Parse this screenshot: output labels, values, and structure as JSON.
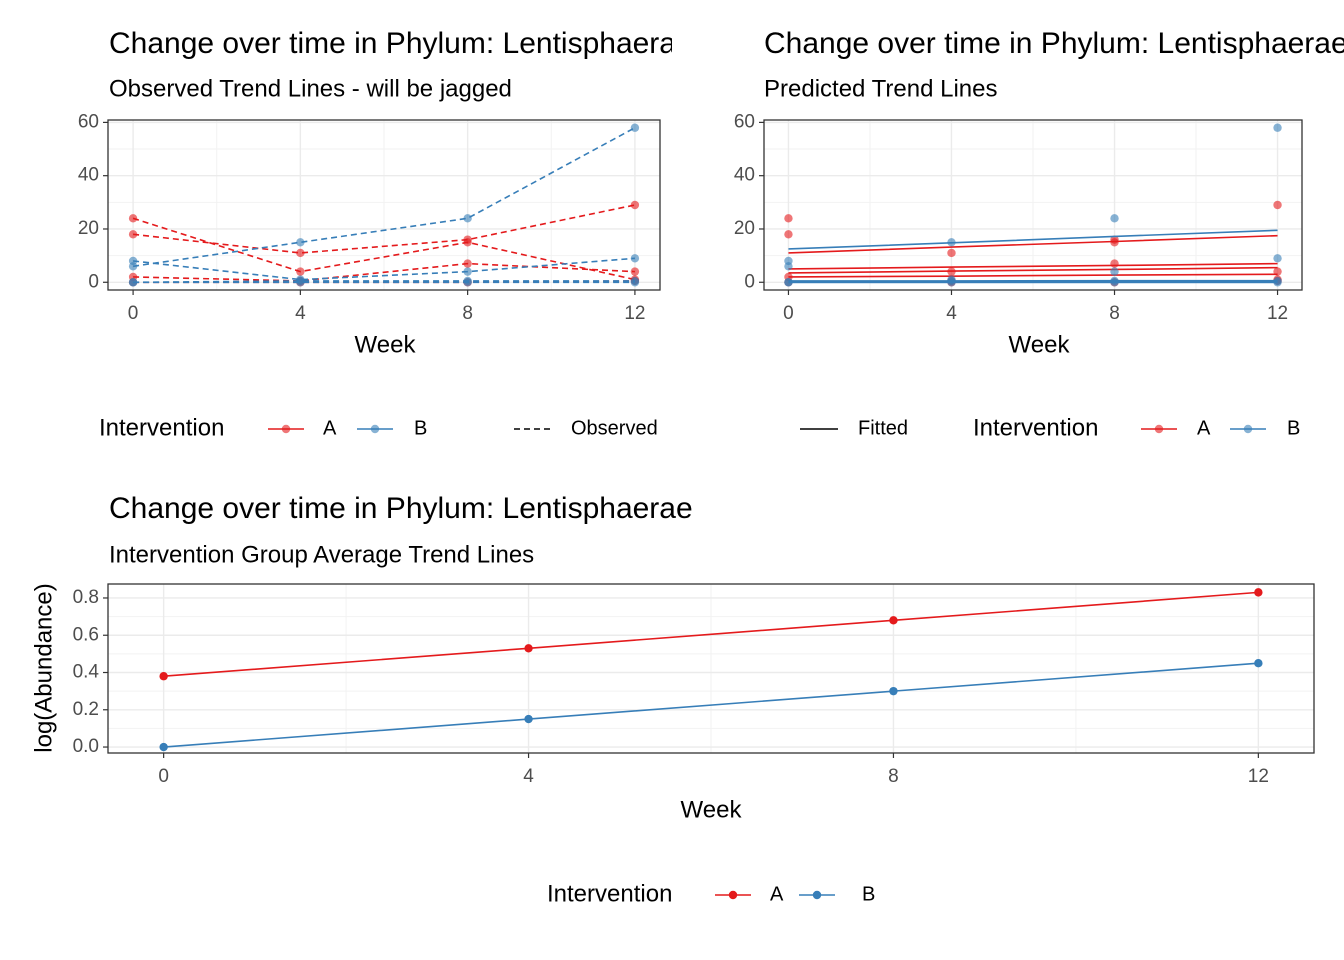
{
  "chart_data": [
    {
      "type": "line",
      "title": "Change over time in Phylum: Lentisphaerae",
      "subtitle": "Observed Trend Lines - will be jagged",
      "xlabel": "Week",
      "x": [
        0,
        4,
        8,
        12
      ],
      "xlim": [
        -0.6,
        12.6
      ],
      "xticks": [
        0,
        4,
        8,
        12
      ],
      "ylim": [
        -2.9,
        60.9
      ],
      "yticks": [
        0,
        20,
        40,
        60
      ],
      "grid": true,
      "linestyle": "dashed",
      "point_alpha": 0.6,
      "legend": {
        "title": "Intervention",
        "entries": [
          {
            "name": "A",
            "color": "#E41A1C"
          },
          {
            "name": "B",
            "color": "#377EB8"
          }
        ]
      },
      "linetype_legend": "Observed",
      "series": [
        {
          "group": 0,
          "values": [
            24,
            4,
            15,
            1
          ]
        },
        {
          "group": 0,
          "values": [
            18,
            11,
            16,
            29
          ]
        },
        {
          "group": 0,
          "values": [
            2,
            0.5,
            7,
            4
          ]
        },
        {
          "group": 0,
          "values": [
            0,
            0,
            0,
            0.5
          ]
        },
        {
          "group": 1,
          "values": [
            6,
            15,
            24,
            58
          ]
        },
        {
          "group": 1,
          "values": [
            8,
            1,
            4,
            9
          ]
        },
        {
          "group": 1,
          "values": [
            0,
            0.5,
            0.5,
            0.5
          ]
        },
        {
          "group": 1,
          "values": [
            0,
            0,
            0,
            0
          ]
        }
      ]
    },
    {
      "type": "scatter",
      "title": "Change over time in Phylum: Lentisphaerae",
      "subtitle": "Predicted Trend Lines",
      "xlabel": "Week",
      "x": [
        0,
        4,
        8,
        12
      ],
      "xlim": [
        -0.6,
        12.6
      ],
      "xticks": [
        0,
        4,
        8,
        12
      ],
      "ylim": [
        -2.9,
        60.9
      ],
      "yticks": [
        0,
        20,
        40,
        60
      ],
      "grid": true,
      "linestyle": "solid",
      "point_alpha": 0.6,
      "legend": {
        "title": "Intervention",
        "entries": [
          {
            "name": "A",
            "color": "#E41A1C"
          },
          {
            "name": "B",
            "color": "#377EB8"
          }
        ]
      },
      "linetype_legend": "Fitted",
      "series": [
        {
          "group": 0,
          "values": [
            24,
            4,
            15,
            1
          ],
          "fitted": [
            3.5,
            4.2,
            4.8,
            5.5
          ]
        },
        {
          "group": 0,
          "values": [
            18,
            11,
            16,
            29
          ],
          "fitted": [
            11,
            13.2,
            15.3,
            17.5
          ]
        },
        {
          "group": 0,
          "values": [
            2,
            0.5,
            7,
            4
          ],
          "fitted": [
            5,
            5.7,
            6.3,
            7
          ]
        },
        {
          "group": 0,
          "values": [
            0,
            0,
            0,
            0.5
          ],
          "fitted": [
            2,
            2.3,
            2.7,
            3
          ]
        },
        {
          "group": 1,
          "values": [
            6,
            15,
            24,
            58
          ],
          "fitted": [
            12.5,
            14.8,
            17.2,
            19.5
          ]
        },
        {
          "group": 1,
          "values": [
            8,
            1,
            4,
            9
          ],
          "fitted": [
            0.5,
            0.5,
            0.6,
            0.6
          ]
        },
        {
          "group": 1,
          "values": [
            0,
            0.5,
            0.5,
            0.5
          ],
          "fitted": [
            0,
            0,
            0,
            0
          ]
        },
        {
          "group": 1,
          "values": [
            0,
            0,
            0,
            0
          ],
          "fitted": [
            0,
            0,
            0,
            0
          ]
        }
      ]
    },
    {
      "type": "line",
      "title": "Change over time in Phylum: Lentisphaerae",
      "subtitle": "Intervention Group Average Trend Lines",
      "xlabel": "Week",
      "ylabel": "log(Abundance)",
      "x": [
        0,
        4,
        8,
        12
      ],
      "xlim": [
        -0.61,
        12.61
      ],
      "xticks": [
        0,
        4,
        8,
        12
      ],
      "ylim": [
        -0.032,
        0.875
      ],
      "yticks": [
        {
          "value": 0,
          "label": "0.0"
        },
        0.2,
        0.4,
        0.6,
        0.8
      ],
      "grid": true,
      "linestyle": "solid",
      "point_alpha": 1,
      "legend": {
        "title": "Intervention",
        "entries": [
          {
            "name": "A",
            "color": "#E41A1C"
          },
          {
            "name": "B",
            "color": "#377EB8"
          }
        ]
      },
      "series": [
        {
          "group": 0,
          "values": [
            0.38,
            0.53,
            0.68,
            0.83
          ]
        },
        {
          "group": 1,
          "values": [
            0,
            0.15,
            0.3,
            0.45
          ]
        }
      ]
    }
  ]
}
